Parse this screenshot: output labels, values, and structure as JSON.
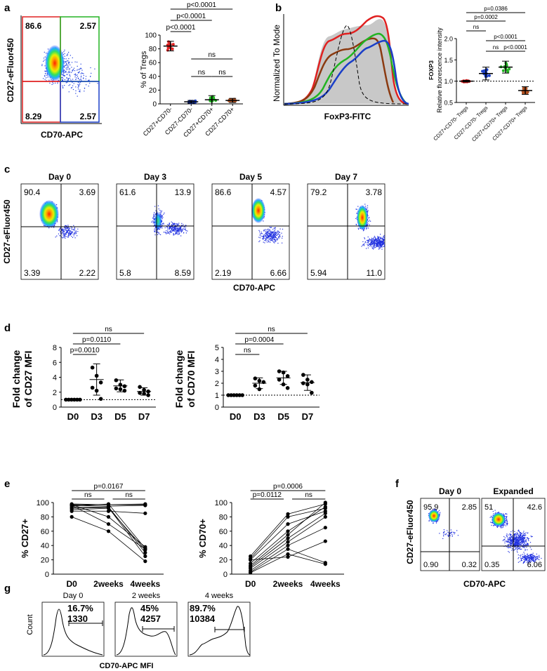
{
  "panels": {
    "a": "a",
    "b": "b",
    "c": "c",
    "d": "d",
    "e": "e",
    "f": "f",
    "g": "g"
  },
  "a": {
    "flow": {
      "xlabel": "CD70-APC",
      "ylabel": "CD27-eFluor450",
      "q": [
        "86.6",
        "2.57",
        "8.29",
        "2.57"
      ]
    },
    "chart_data": {
      "type": "scatter",
      "ylabel": "% of Tregs",
      "categories": [
        "CD27+CD70-",
        "CD27-CD70-",
        "CD27+CD70+",
        "CD27-CD70+"
      ],
      "means": [
        84,
        3,
        6,
        5
      ],
      "sd": [
        7,
        2,
        6,
        3
      ],
      "yticks": [
        "0",
        "20",
        "40",
        "60",
        "80",
        "100"
      ],
      "ylim": [
        0,
        100
      ],
      "colors": [
        "#e02020",
        "#1b3fc8",
        "#22b422",
        "#b05020"
      ],
      "sig": [
        {
          "text": "p<0.0001",
          "from": 0,
          "to": 3
        },
        {
          "text": "p<0.0001",
          "from": 0,
          "to": 2
        },
        {
          "text": "p<0.0001",
          "from": 0,
          "to": 1
        },
        {
          "text": "ns",
          "from": 1,
          "to": 3
        },
        {
          "text": "ns",
          "from": 1,
          "to": 2
        },
        {
          "text": "ns",
          "from": 2,
          "to": 3
        }
      ]
    }
  },
  "b": {
    "hist": {
      "xlabel": "FoxP3-FITC",
      "ylabel": "Normalized To Mode"
    },
    "chart_data": {
      "type": "scatter",
      "ylabel_top": "FOXP3",
      "ylabel": "Relative fluorescence intensity",
      "categories": [
        "CD27+CD70- Tregs",
        "CD27-CD70- Tregs",
        "CD27+CD70+ Tregs",
        "CD27-CD70+ Tregs"
      ],
      "means": [
        1.0,
        1.18,
        1.33,
        0.78
      ],
      "sd": [
        0.02,
        0.15,
        0.14,
        0.09
      ],
      "yticks": [
        "0.5",
        "1.0",
        "1.5",
        "2.0"
      ],
      "ylim": [
        0.5,
        2.0
      ],
      "colors": [
        "#e02020",
        "#1b3fc8",
        "#22b422",
        "#b05020"
      ],
      "sig": [
        {
          "text": "p=0.0386",
          "from": 0,
          "to": 3
        },
        {
          "text": "p=0.0002",
          "from": 0,
          "to": 2
        },
        {
          "text": "ns",
          "from": 0,
          "to": 1
        },
        {
          "text": "p<0.0001",
          "from": 1,
          "to": 3
        },
        {
          "text": "ns",
          "from": 1,
          "to": 2
        },
        {
          "text": "p<0.0001",
          "from": 2,
          "to": 3
        }
      ]
    }
  },
  "c": {
    "ylabel": "CD27-eFluor450",
    "xlabel": "CD70-APC",
    "plots": [
      {
        "day": "Day 0",
        "q": [
          "90.4",
          "3.69",
          "3.39",
          "2.22"
        ]
      },
      {
        "day": "Day 3",
        "q": [
          "61.6",
          "13.9",
          "5.8",
          "8.59"
        ]
      },
      {
        "day": "Day 5",
        "q": [
          "86.6",
          "4.57",
          "2.19",
          "6.66"
        ]
      },
      {
        "day": "Day 7",
        "q": [
          "79.2",
          "3.78",
          "5.94",
          "11.0"
        ]
      }
    ]
  },
  "d": {
    "chart_data": [
      {
        "type": "scatter",
        "ylabel1": "Fold change",
        "ylabel2": "of CD27 MFI",
        "categories": [
          "D0",
          "D3",
          "D5",
          "D7"
        ],
        "means": [
          1,
          3.7,
          2.85,
          2.1
        ],
        "sd": [
          0,
          2.1,
          0.8,
          0.5
        ],
        "yticks": [
          "0",
          "2",
          "4",
          "6",
          "8"
        ],
        "ylim": [
          0,
          8
        ],
        "points": [
          [
            1,
            1,
            1,
            1,
            1,
            1
          ],
          [
            5.3,
            4.2,
            3.3,
            2.6,
            2.2,
            1.1
          ],
          [
            3.6,
            3.0,
            2.8,
            2.5,
            2.4,
            2.2
          ],
          [
            2.7,
            2.3,
            2.1,
            1.9,
            1.8,
            1.6
          ]
        ],
        "sig": [
          {
            "text": "ns",
            "from": 0,
            "to": 3
          },
          {
            "text": "p=0.0110",
            "from": 0,
            "to": 2
          },
          {
            "text": "p=0.0010",
            "from": 0,
            "to": 1
          }
        ]
      },
      {
        "type": "scatter",
        "ylabel1": "Fold change",
        "ylabel2": "of CD70 MFI",
        "categories": [
          "D0",
          "D3",
          "D5",
          "D7"
        ],
        "means": [
          1,
          2.0,
          2.45,
          2.05
        ],
        "sd": [
          0,
          0.45,
          0.55,
          0.65
        ],
        "yticks": [
          "0",
          "1",
          "2",
          "3",
          "4",
          "5"
        ],
        "ylim": [
          0,
          5
        ],
        "points": [
          [
            1,
            1,
            1,
            1,
            1,
            1
          ],
          [
            2.4,
            2.2,
            2.1,
            1.8,
            1.5
          ],
          [
            3.0,
            2.9,
            2.6,
            2.3,
            1.9,
            1.6
          ],
          [
            2.7,
            2.3,
            2.1,
            2.0,
            1.9,
            1.2
          ]
        ],
        "sig": [
          {
            "text": "ns",
            "from": 0,
            "to": 3
          },
          {
            "text": "p=0.0004",
            "from": 0,
            "to": 2
          },
          {
            "text": "ns",
            "from": 0,
            "to": 1
          }
        ]
      }
    ]
  },
  "e": {
    "chart_data": [
      {
        "type": "line",
        "ylabel": "% CD27+",
        "categories": [
          "D0",
          "2weeks",
          "4weeks"
        ],
        "yticks": [
          "0",
          "20",
          "40",
          "60",
          "80",
          "100"
        ],
        "ylim": [
          0,
          100
        ],
        "series": [
          [
            97,
            97,
            97
          ],
          [
            96,
            95,
            96
          ],
          [
            98,
            97,
            98
          ],
          [
            95,
            98,
            36
          ],
          [
            93,
            94,
            30
          ],
          [
            92,
            93,
            25
          ],
          [
            90,
            92,
            34
          ],
          [
            96,
            70,
            35
          ],
          [
            88,
            88,
            85
          ],
          [
            80,
            60,
            18
          ],
          [
            97,
            80,
            38
          ]
        ],
        "sig": [
          {
            "text": "p=0.0167",
            "from": 0,
            "to": 2
          },
          {
            "text": "ns",
            "from": 0,
            "to": 1
          },
          {
            "text": "ns",
            "from": 1,
            "to": 2
          }
        ]
      },
      {
        "type": "line",
        "ylabel": "% CD70+",
        "categories": [
          "D0",
          "2weeks",
          "4weeks"
        ],
        "yticks": [
          "0",
          "20",
          "40",
          "60",
          "80",
          "100"
        ],
        "ylim": [
          0,
          100
        ],
        "series": [
          [
            25,
            84,
            98
          ],
          [
            22,
            80,
            92
          ],
          [
            20,
            70,
            88
          ],
          [
            15,
            60,
            94
          ],
          [
            10,
            50,
            85
          ],
          [
            8,
            45,
            80
          ],
          [
            5,
            40,
            65
          ],
          [
            3,
            35,
            16
          ],
          [
            2,
            28,
            14
          ],
          [
            12,
            55,
            100
          ],
          [
            20,
            24,
            46
          ]
        ],
        "sig": [
          {
            "text": "p=0.0006",
            "from": 0,
            "to": 2
          },
          {
            "text": "p=0.0112",
            "from": 0,
            "to": 1
          },
          {
            "text": "ns",
            "from": 1,
            "to": 2
          }
        ]
      }
    ]
  },
  "f": {
    "ylabel": "CD27-eFluor450",
    "xlabel": "CD70-APC",
    "plots": [
      {
        "title": "Day 0",
        "q": [
          "95.9",
          "2.85",
          "0.90",
          "0.32"
        ]
      },
      {
        "title": "Expanded",
        "q": [
          "51",
          "42.6",
          "0.35",
          "6.06"
        ]
      }
    ]
  },
  "g": {
    "ylabel": "Count",
    "xlabel": "CD70-APC MFI",
    "plots": [
      {
        "title": "Day 0",
        "pct": "16.7%",
        "mfi": "1330"
      },
      {
        "title": "2 weeks",
        "pct": "45%",
        "mfi": "4257"
      },
      {
        "title": "4 weeks",
        "pct": "89.7%",
        "mfi": "10384"
      }
    ]
  }
}
